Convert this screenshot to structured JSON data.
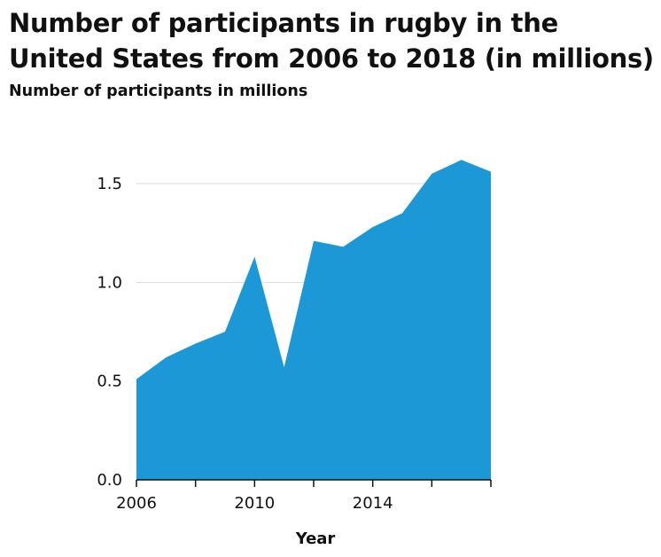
{
  "chart_data": {
    "type": "area",
    "title": "Number of participants in rugby in the United States from 2006 to 2018 (in millions)",
    "ylabel": "Number of participants in millions",
    "xlabel": "Year",
    "x": [
      2006,
      2007,
      2008,
      2009,
      2010,
      2011,
      2012,
      2013,
      2014,
      2015,
      2016,
      2017,
      2018
    ],
    "values": [
      0.51,
      0.62,
      0.69,
      0.75,
      1.13,
      0.57,
      1.21,
      1.18,
      1.28,
      1.35,
      1.55,
      1.62,
      1.56
    ],
    "xlim": [
      2005,
      2017
    ],
    "ylim": [
      0,
      1.5
    ],
    "yticks": [
      "0.0",
      "0.5",
      "1.0",
      "1.5"
    ],
    "xticks": [
      "2006",
      "2010",
      "2014"
    ],
    "grid": true,
    "colors": {
      "area": "#1b98d5",
      "grid": "#d9d9d9",
      "axis": "#111111"
    }
  }
}
